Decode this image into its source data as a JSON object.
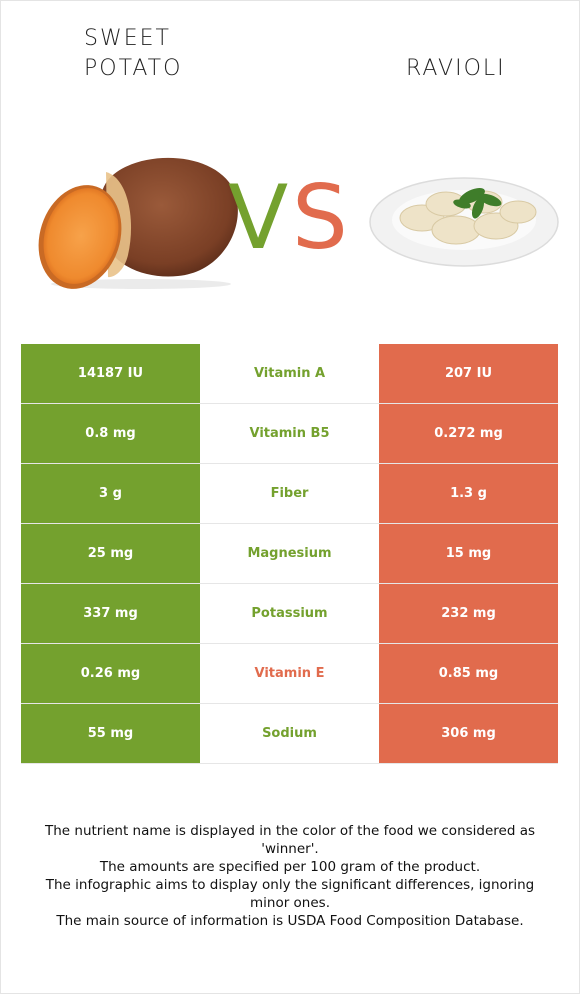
{
  "colors": {
    "green": "#74a12e",
    "red": "#e16b4d"
  },
  "left_food": {
    "title": "SWEET POTATO",
    "image_icon": "sweet-potato-image"
  },
  "right_food": {
    "title": "RAVIOLI",
    "image_icon": "ravioli-plate-image"
  },
  "vs": {
    "v": "V",
    "s": "S"
  },
  "rows": [
    {
      "left": "14187 IU",
      "nutrient": "Vitamin A",
      "right": "207 IU",
      "winner": "left"
    },
    {
      "left": "0.8 mg",
      "nutrient": "Vitamin B5",
      "right": "0.272 mg",
      "winner": "left"
    },
    {
      "left": "3 g",
      "nutrient": "Fiber",
      "right": "1.3 g",
      "winner": "left"
    },
    {
      "left": "25 mg",
      "nutrient": "Magnesium",
      "right": "15 mg",
      "winner": "left"
    },
    {
      "left": "337 mg",
      "nutrient": "Potassium",
      "right": "232 mg",
      "winner": "left"
    },
    {
      "left": "0.26 mg",
      "nutrient": "Vitamin E",
      "right": "0.85 mg",
      "winner": "right"
    },
    {
      "left": "55 mg",
      "nutrient": "Sodium",
      "right": "306 mg",
      "winner": "left"
    }
  ],
  "footer": [
    "The nutrient name is displayed in the color of the food we considered as 'winner'.",
    "The amounts are specified per 100 gram of the product.",
    "The infographic aims to display only the significant differences, ignoring minor ones.",
    "The main source of information is USDA Food Composition Database."
  ]
}
